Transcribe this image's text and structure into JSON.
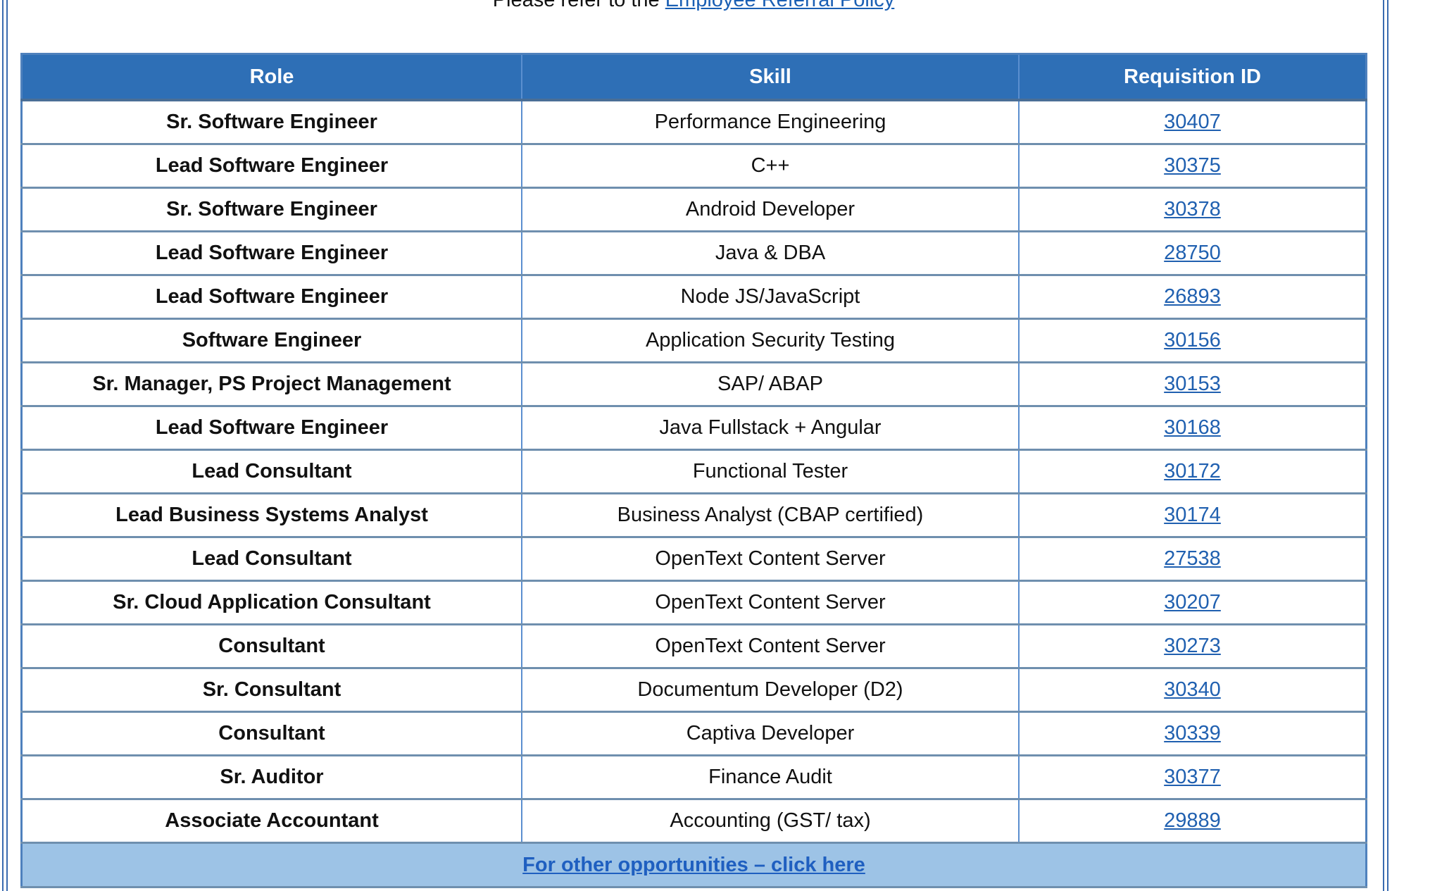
{
  "intro": {
    "prefix": "Please refer to the ",
    "link": "Employee Referral Policy"
  },
  "table": {
    "headers": [
      "Role",
      "Skill",
      "Requisition ID"
    ],
    "rows": [
      {
        "role": "Sr. Software Engineer",
        "skill": "Performance Engineering",
        "req": "30407"
      },
      {
        "role": "Lead Software Engineer",
        "skill": "C++",
        "req": "30375"
      },
      {
        "role": "Sr. Software Engineer",
        "skill": "Android Developer",
        "req": "30378"
      },
      {
        "role": "Lead Software Engineer",
        "skill": "Java & DBA",
        "req": "28750"
      },
      {
        "role": "Lead Software Engineer",
        "skill": "Node JS/JavaScript",
        "req": "26893"
      },
      {
        "role": "Software Engineer",
        "skill": "Application Security Testing",
        "req": "30156"
      },
      {
        "role": "Sr. Manager, PS Project Management",
        "skill": "SAP/ ABAP",
        "req": "30153"
      },
      {
        "role": "Lead Software Engineer",
        "skill": "Java Fullstack + Angular",
        "req": "30168"
      },
      {
        "role": "Lead Consultant",
        "skill": "Functional Tester",
        "req": "30172"
      },
      {
        "role": "Lead Business Systems Analyst",
        "skill": "Business Analyst (CBAP certified)",
        "req": "30174"
      },
      {
        "role": "Lead Consultant",
        "skill": "OpenText Content Server",
        "req": "27538"
      },
      {
        "role": "Sr. Cloud Application Consultant",
        "skill": "OpenText Content Server",
        "req": "30207"
      },
      {
        "role": "Consultant",
        "skill": "OpenText Content Server",
        "req": "30273"
      },
      {
        "role": "Sr. Consultant",
        "skill": "Documentum Developer (D2)",
        "req": "30340"
      },
      {
        "role": "Consultant",
        "skill": "Captiva Developer",
        "req": "30339"
      },
      {
        "role": "Sr. Auditor",
        "skill": "Finance Audit",
        "req": "30377"
      },
      {
        "role": "Associate Accountant",
        "skill": "Accounting (GST/ tax)",
        "req": "29889"
      }
    ],
    "footer_link": "For other opportunities – click here"
  },
  "colors": {
    "header_bg": "#2e6fb6",
    "footer_bg": "#9dc3e6",
    "link": "#2060b0",
    "border": "#5b8fcf"
  }
}
